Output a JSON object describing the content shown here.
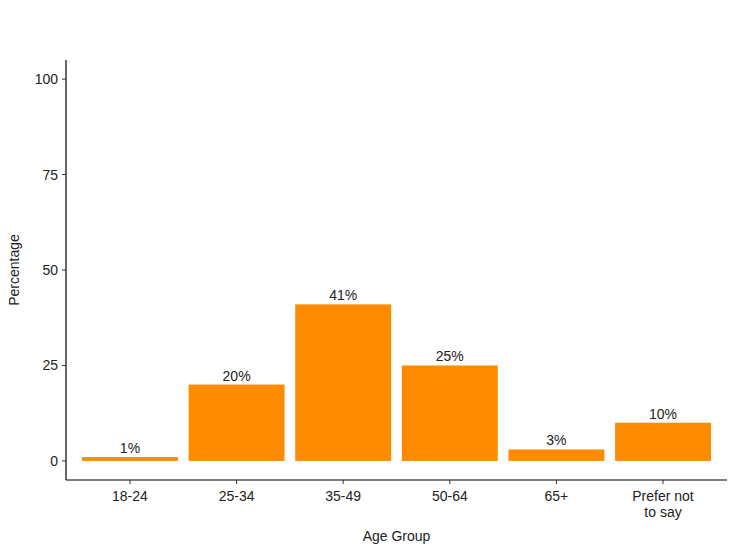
{
  "chart_data": {
    "type": "bar",
    "categories": [
      "18-24",
      "25-34",
      "35-49",
      "50-64",
      "65+",
      "Prefer not\nto say"
    ],
    "values": [
      1,
      20,
      41,
      25,
      3,
      10
    ],
    "value_labels": [
      "1%",
      "20%",
      "41%",
      "25%",
      "3%",
      "10%"
    ],
    "color": "#ff8c00",
    "x_label": "Age Group",
    "y_label": "Percentage",
    "ylim": [
      -5,
      105
    ],
    "yticks": [
      0,
      25,
      50,
      75,
      100
    ],
    "grid": false,
    "data_labels": true
  }
}
